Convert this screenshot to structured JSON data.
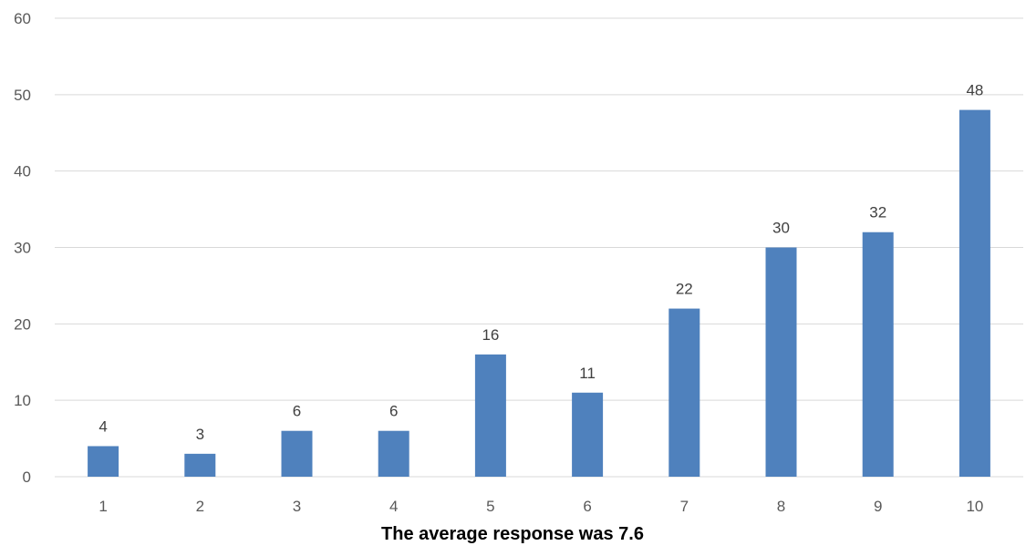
{
  "chart_data": {
    "type": "bar",
    "categories": [
      "1",
      "2",
      "3",
      "4",
      "5",
      "6",
      "7",
      "8",
      "9",
      "10"
    ],
    "values": [
      4,
      3,
      6,
      6,
      16,
      11,
      22,
      30,
      32,
      48
    ],
    "title": "",
    "xlabel": "The average response was 7.6",
    "ylabel": "",
    "ylim": [
      0,
      60
    ],
    "yticks": [
      0,
      10,
      20,
      30,
      40,
      50,
      60
    ],
    "grid": true,
    "data_labels": true,
    "bar_color": "#4f81bd",
    "legend": "none"
  }
}
